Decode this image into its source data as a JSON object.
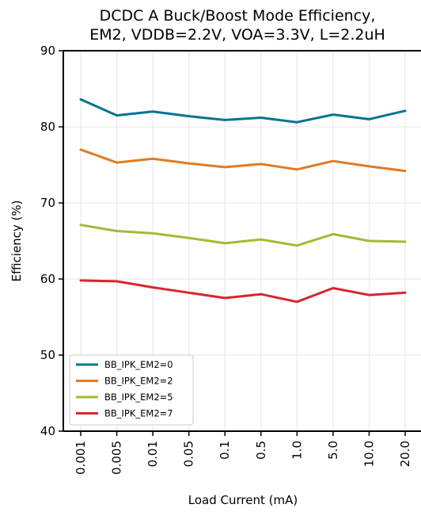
{
  "chart_data": {
    "type": "line",
    "title": [
      "DCDC A Buck/Boost Mode Efficiency,",
      "EM2, VDDB=2.2V, VOA=3.3V, L=2.2uH"
    ],
    "xlabel": "Load Current (mA)",
    "ylabel": "Efficiency (%)",
    "categories": [
      "0.001",
      "0.005",
      "0.01",
      "0.05",
      "0.1",
      "0.5",
      "1.0",
      "5.0",
      "10.0",
      "20.0"
    ],
    "ylim": [
      40,
      90
    ],
    "yticks": [
      "40",
      "50",
      "60",
      "70",
      "80",
      "90"
    ],
    "grid": true,
    "legend_position": "lower-left",
    "series": [
      {
        "name": "BB_IPK_EM2=0",
        "color": "#00758f",
        "values": [
          83.6,
          81.5,
          82.0,
          81.4,
          80.9,
          81.2,
          80.6,
          81.6,
          81.0,
          82.1
        ]
      },
      {
        "name": "BB_IPK_EM2=2",
        "color": "#e07b22",
        "values": [
          77.0,
          75.3,
          75.8,
          75.2,
          74.7,
          75.1,
          74.4,
          75.5,
          74.8,
          74.2
        ]
      },
      {
        "name": "BB_IPK_EM2=5",
        "color": "#9fbd32",
        "values": [
          67.1,
          66.3,
          66.0,
          65.4,
          64.7,
          65.2,
          64.4,
          65.9,
          65.0,
          64.9
        ]
      },
      {
        "name": "BB_IPK_EM2=7",
        "color": "#d7262f",
        "values": [
          59.8,
          59.7,
          58.9,
          58.2,
          57.5,
          58.0,
          57.0,
          58.8,
          57.9,
          58.2
        ]
      }
    ]
  }
}
